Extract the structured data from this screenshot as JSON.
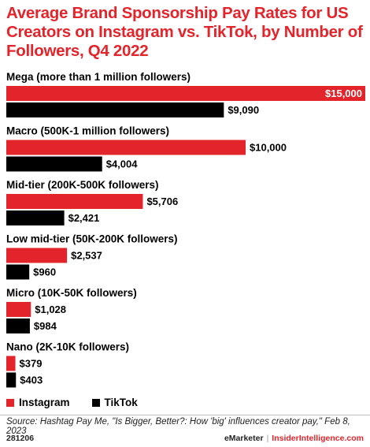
{
  "chart_data": {
    "type": "bar",
    "orientation": "horizontal",
    "title": "Average Brand Sponsorship Pay Rates for US Creators on Instagram vs. TikTok, by Number of Followers, Q4 2022",
    "categories": [
      "Mega (more than 1 million followers)",
      "Macro (500K-1 million followers)",
      "Mid-tier (200K-500K followers)",
      "Low mid-tier (50K-200K followers)",
      "Micro (10K-50K followers)",
      "Nano (2K-10K followers)"
    ],
    "series": [
      {
        "name": "Instagram",
        "color": "#e3242b",
        "values": [
          15000,
          10000,
          5706,
          2537,
          1028,
          379
        ],
        "labels": [
          "$15,000",
          "$10,000",
          "$5,706",
          "$2,537",
          "$1,028",
          "$379"
        ]
      },
      {
        "name": "TikTok",
        "color": "#000000",
        "values": [
          9090,
          4004,
          2421,
          960,
          984,
          403
        ],
        "labels": [
          "$9,090",
          "$4,004",
          "$2,421",
          "$960",
          "$984",
          "$403"
        ]
      }
    ],
    "xlim": [
      0,
      15000
    ],
    "grid": false,
    "legend_position": "bottom-left"
  },
  "source": "Source: Hashtag Pay Me, \"Is Bigger, Better?: How 'big' influences creator pay,\" Feb 8, 2023",
  "footer": {
    "chart_id": "281206",
    "brand_left": "eMarketer",
    "separator": "|",
    "brand_right": "InsiderIntelligence.com"
  }
}
